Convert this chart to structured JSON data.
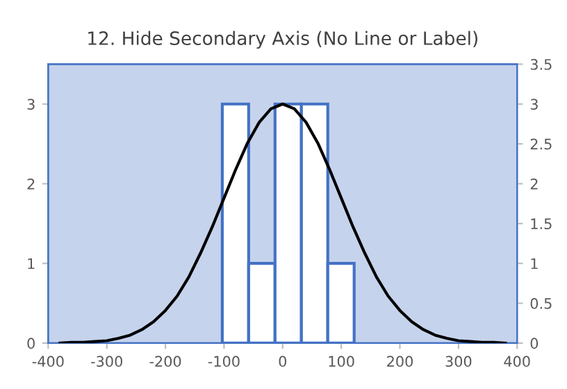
{
  "chart_data": {
    "type": "histogram",
    "title": "12. Hide Secondary Axis (No Line or Label)",
    "bins": [
      -103,
      -58,
      -13,
      32,
      77,
      122
    ],
    "values": [
      3,
      1,
      3,
      3,
      1
    ],
    "color": "#4472c4",
    "xlim": [
      -400,
      400
    ],
    "xticks": [
      -400,
      -300,
      -200,
      -100,
      0,
      100,
      200,
      300,
      400
    ],
    "ylim": [
      0,
      3.5
    ],
    "yticks": [
      0,
      1,
      2,
      3
    ],
    "y2lim": [
      0,
      3.5
    ],
    "y2ticks": [
      0,
      0.5,
      1,
      1.5,
      2,
      2.5,
      3,
      3.5
    ],
    "grid": false,
    "legend": false,
    "series": [
      {
        "type": "line",
        "axis": "y2",
        "color": "#000000",
        "x": [
          -380,
          -360,
          -340,
          -320,
          -300,
          -280,
          -260,
          -240,
          -220,
          -200,
          -180,
          -160,
          -140,
          -120,
          -100,
          -80,
          -60,
          -40,
          -20,
          0,
          20,
          40,
          60,
          80,
          100,
          120,
          140,
          160,
          180,
          200,
          220,
          240,
          260,
          280,
          300,
          320,
          340,
          360,
          380
        ],
        "values": [
          0.0,
          0.01,
          0.01,
          0.02,
          0.03,
          0.06,
          0.1,
          0.17,
          0.27,
          0.41,
          0.59,
          0.83,
          1.13,
          1.46,
          1.82,
          2.18,
          2.51,
          2.77,
          2.94,
          3,
          2.94,
          2.77,
          2.51,
          2.18,
          1.82,
          1.46,
          1.13,
          0.83,
          0.59,
          0.41,
          0.27,
          0.17,
          0.1,
          0.06,
          0.03,
          0.02,
          0.01,
          0.01,
          0.0
        ]
      }
    ]
  }
}
